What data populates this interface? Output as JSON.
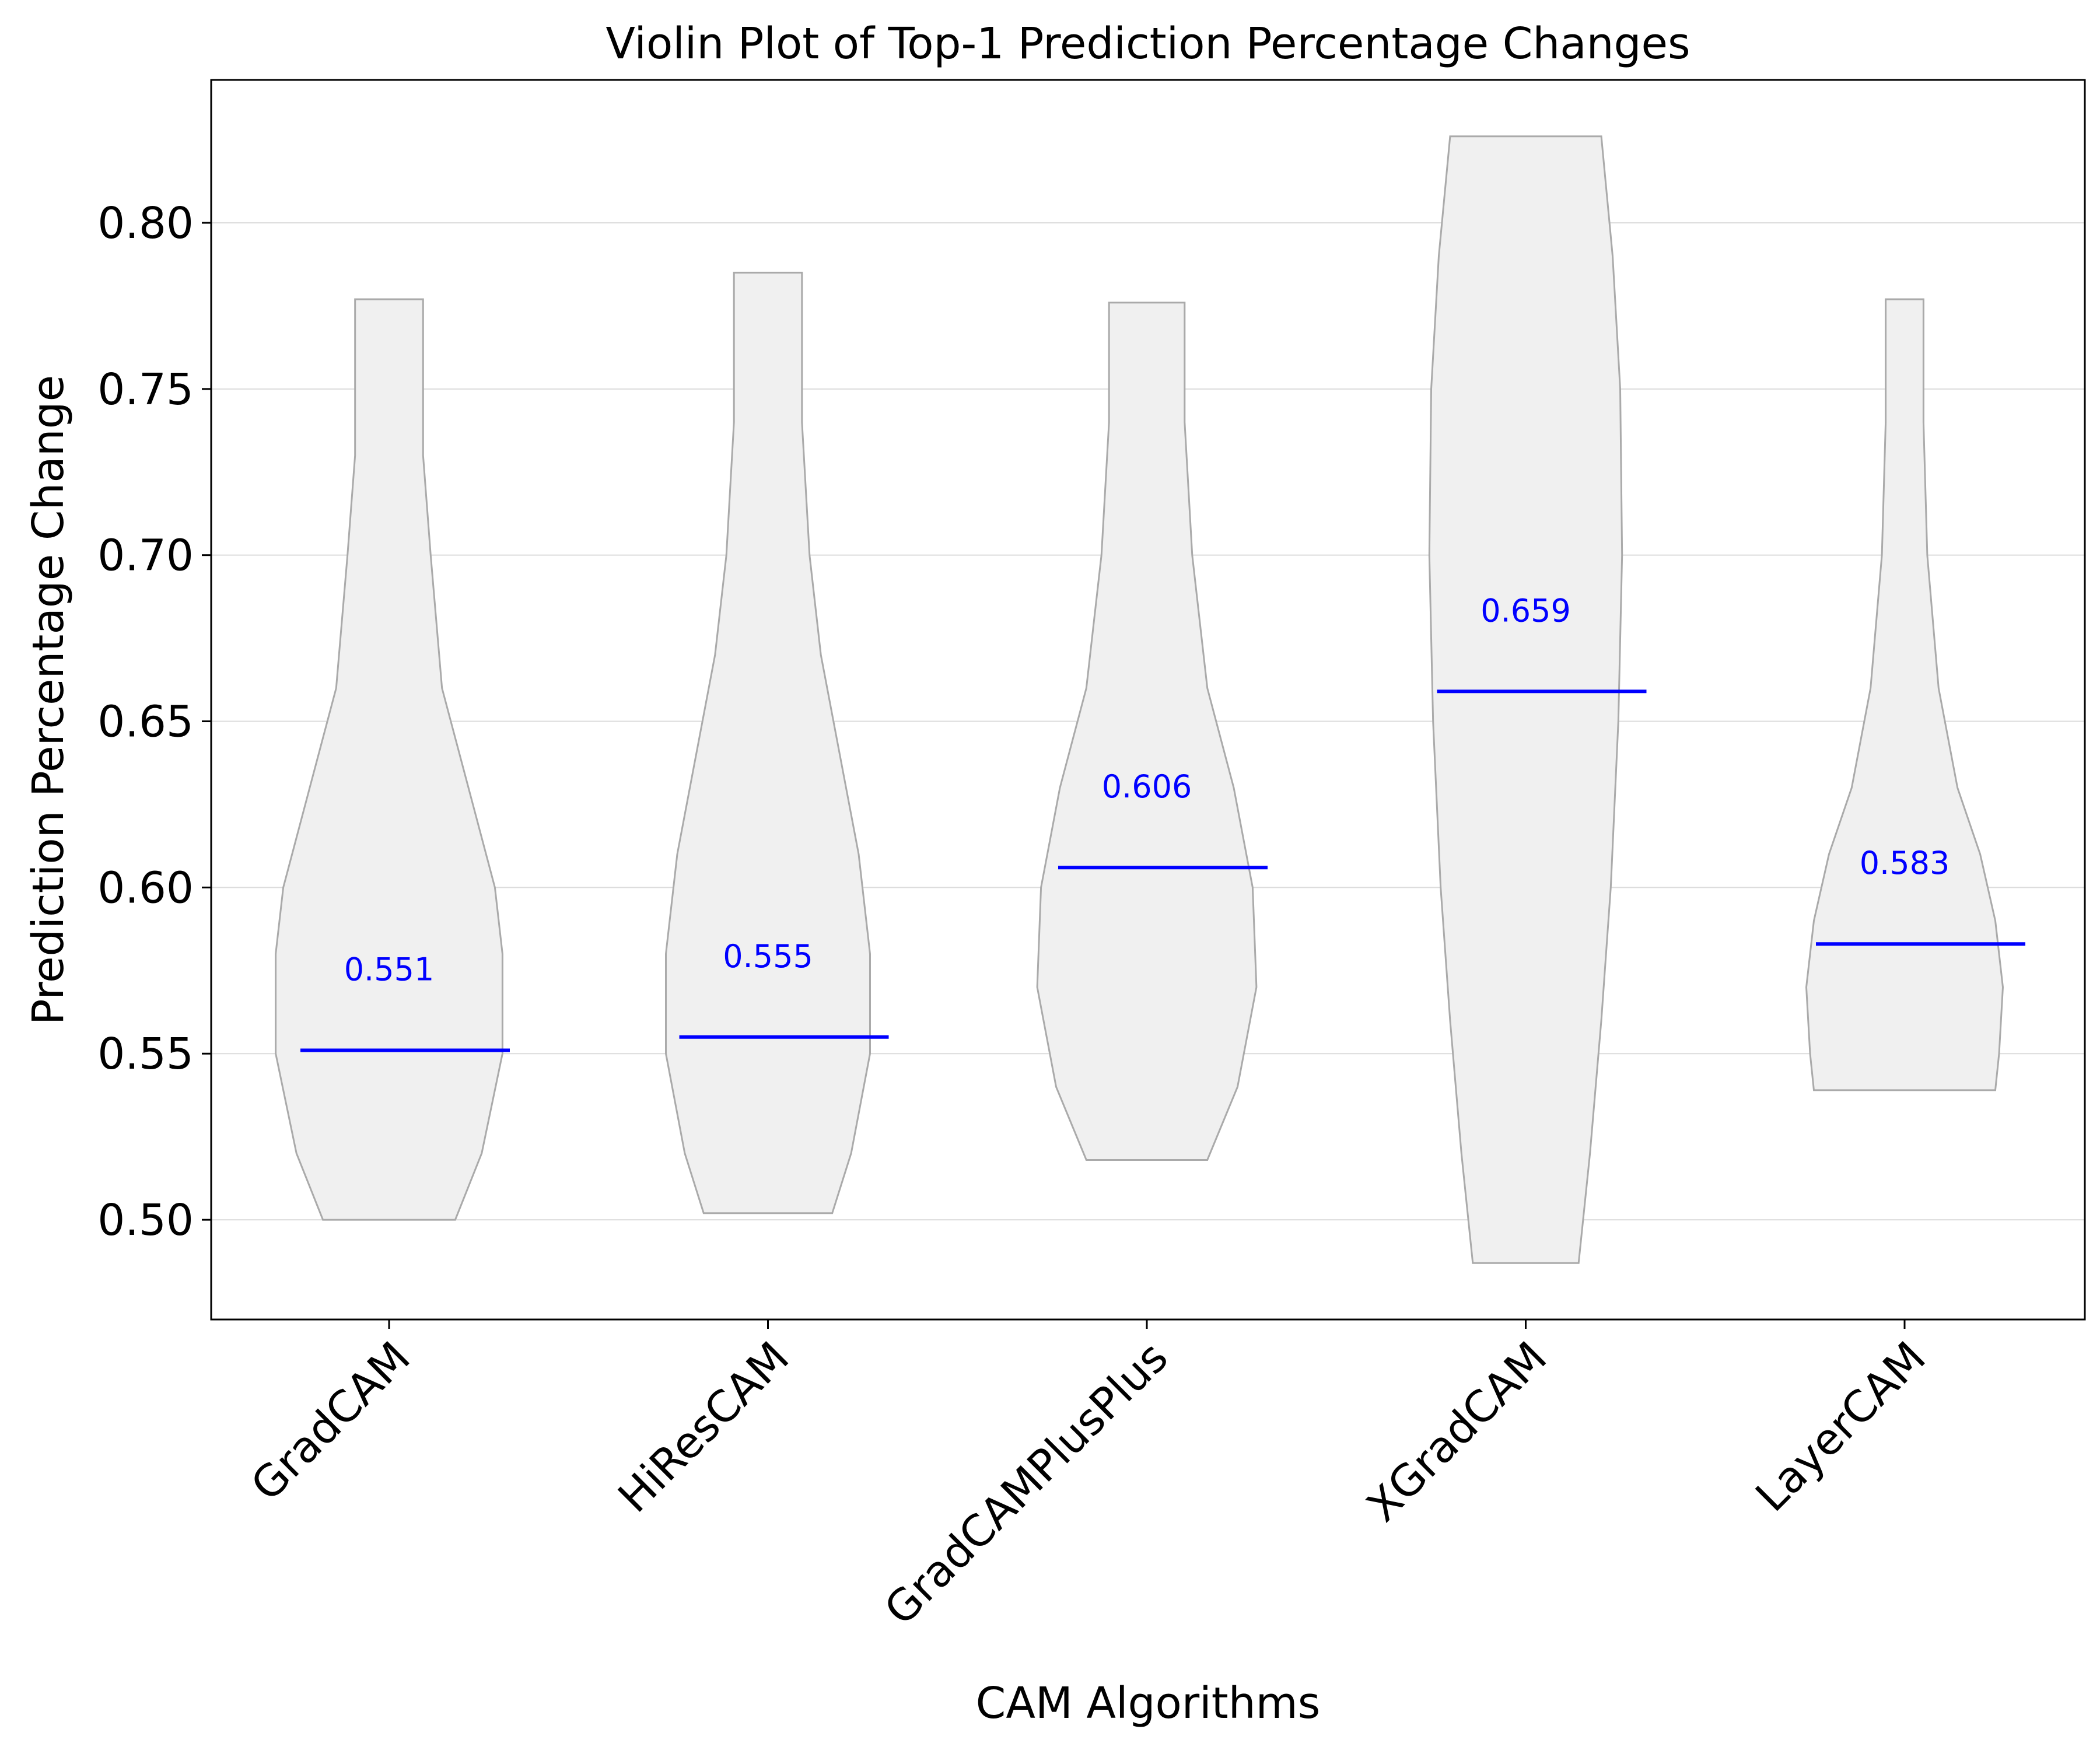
{
  "chart_data": {
    "type": "violin",
    "title": "Violin Plot of Top-1 Prediction Percentage Changes",
    "xlabel": "CAM Algorithms",
    "ylabel": "Prediction Percentage Change",
    "ylim": [
      0.47,
      0.843
    ],
    "yticks": [
      "0.50",
      "0.55",
      "0.60",
      "0.65",
      "0.70",
      "0.75",
      "0.80"
    ],
    "grid": "horizontal",
    "violin_fill": "#f0f0f0",
    "violin_edge": "#aaaaaa",
    "median_color": "#0000ff",
    "series": [
      {
        "name": "GradCAM",
        "min": 0.5,
        "max": 0.777,
        "median": 0.551,
        "median_label": "0.551",
        "shape": [
          [
            0.5,
            0.175
          ],
          [
            0.52,
            0.245
          ],
          [
            0.55,
            0.3
          ],
          [
            0.58,
            0.3
          ],
          [
            0.6,
            0.28
          ],
          [
            0.63,
            0.21
          ],
          [
            0.66,
            0.14
          ],
          [
            0.7,
            0.11
          ],
          [
            0.73,
            0.09
          ],
          [
            0.777,
            0.09
          ]
        ]
      },
      {
        "name": "HiResCAM",
        "min": 0.502,
        "max": 0.785,
        "median": 0.555,
        "median_label": "0.555",
        "shape": [
          [
            0.502,
            0.17
          ],
          [
            0.52,
            0.22
          ],
          [
            0.55,
            0.27
          ],
          [
            0.58,
            0.27
          ],
          [
            0.61,
            0.24
          ],
          [
            0.64,
            0.19
          ],
          [
            0.67,
            0.14
          ],
          [
            0.7,
            0.11
          ],
          [
            0.74,
            0.09
          ],
          [
            0.785,
            0.09
          ]
        ]
      },
      {
        "name": "GradCAMPlusPlus",
        "min": 0.518,
        "max": 0.776,
        "median": 0.606,
        "median_label": "0.606",
        "shape": [
          [
            0.518,
            0.16
          ],
          [
            0.54,
            0.24
          ],
          [
            0.57,
            0.29
          ],
          [
            0.6,
            0.28
          ],
          [
            0.63,
            0.23
          ],
          [
            0.66,
            0.16
          ],
          [
            0.7,
            0.12
          ],
          [
            0.74,
            0.1
          ],
          [
            0.776,
            0.1
          ]
        ]
      },
      {
        "name": "XGradCAM",
        "min": 0.487,
        "max": 0.826,
        "median": 0.659,
        "median_label": "0.659",
        "shape": [
          [
            0.487,
            0.14
          ],
          [
            0.52,
            0.17
          ],
          [
            0.56,
            0.2
          ],
          [
            0.6,
            0.225
          ],
          [
            0.65,
            0.245
          ],
          [
            0.7,
            0.255
          ],
          [
            0.75,
            0.25
          ],
          [
            0.79,
            0.23
          ],
          [
            0.826,
            0.2
          ]
        ]
      },
      {
        "name": "LayerCAM",
        "min": 0.539,
        "max": 0.777,
        "median": 0.583,
        "median_label": "0.583",
        "shape": [
          [
            0.539,
            0.24
          ],
          [
            0.55,
            0.25
          ],
          [
            0.57,
            0.26
          ],
          [
            0.59,
            0.24
          ],
          [
            0.61,
            0.2
          ],
          [
            0.63,
            0.14
          ],
          [
            0.66,
            0.09
          ],
          [
            0.7,
            0.06
          ],
          [
            0.74,
            0.05
          ],
          [
            0.777,
            0.05
          ]
        ]
      }
    ]
  }
}
